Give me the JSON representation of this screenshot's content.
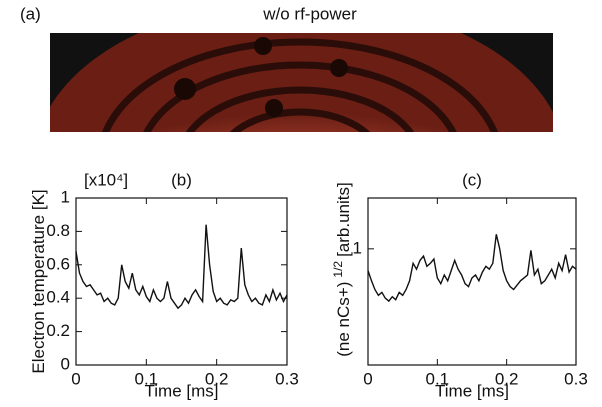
{
  "panel_a": {
    "label": "(a)",
    "title": "w/o rf-power"
  },
  "chart_data": [
    {
      "type": "line",
      "label": "(b)",
      "ylabel": "Electron temperature [K]",
      "y_multiplier": "[x10⁴]",
      "xlabel": "Time [ms]",
      "xlim": [
        0,
        0.3
      ],
      "xticks": [
        0,
        0.1,
        0.2,
        0.3
      ],
      "ylim": [
        0,
        1
      ],
      "yticks": [
        0,
        0.2,
        0.4,
        0.6,
        0.8,
        1
      ],
      "grid": false,
      "color": "#111111",
      "x": [
        0,
        0.005,
        0.01,
        0.015,
        0.02,
        0.025,
        0.03,
        0.035,
        0.04,
        0.045,
        0.05,
        0.055,
        0.06,
        0.065,
        0.07,
        0.075,
        0.08,
        0.085,
        0.09,
        0.095,
        0.1,
        0.105,
        0.11,
        0.115,
        0.12,
        0.125,
        0.13,
        0.135,
        0.14,
        0.145,
        0.15,
        0.155,
        0.16,
        0.165,
        0.17,
        0.175,
        0.18,
        0.185,
        0.19,
        0.195,
        0.2,
        0.205,
        0.21,
        0.215,
        0.22,
        0.225,
        0.23,
        0.235,
        0.24,
        0.245,
        0.25,
        0.255,
        0.26,
        0.265,
        0.27,
        0.275,
        0.28,
        0.285,
        0.29,
        0.295,
        0.3
      ],
      "values": [
        0.68,
        0.55,
        0.5,
        0.47,
        0.48,
        0.45,
        0.42,
        0.43,
        0.38,
        0.4,
        0.37,
        0.36,
        0.4,
        0.6,
        0.5,
        0.46,
        0.55,
        0.45,
        0.42,
        0.47,
        0.41,
        0.38,
        0.45,
        0.4,
        0.38,
        0.4,
        0.5,
        0.4,
        0.37,
        0.34,
        0.36,
        0.4,
        0.37,
        0.42,
        0.45,
        0.41,
        0.38,
        0.84,
        0.6,
        0.44,
        0.38,
        0.4,
        0.37,
        0.36,
        0.39,
        0.38,
        0.4,
        0.7,
        0.48,
        0.42,
        0.38,
        0.4,
        0.37,
        0.36,
        0.42,
        0.38,
        0.45,
        0.39,
        0.43,
        0.38,
        0.42
      ]
    },
    {
      "type": "line",
      "label": "(c)",
      "ylabel": "(ne nCs+)",
      "ylabel_sup": "1/2",
      "ylabel_unit": "[arb.units]",
      "xlabel": "Time [ms]",
      "xlim": [
        0,
        0.3
      ],
      "xticks": [
        0,
        0.1,
        0.2,
        0.3
      ],
      "ylim": [
        0.2,
        1.35
      ],
      "yticks": [
        1
      ],
      "grid": false,
      "color": "#111111",
      "x": [
        0,
        0.005,
        0.01,
        0.015,
        0.02,
        0.025,
        0.03,
        0.035,
        0.04,
        0.045,
        0.05,
        0.055,
        0.06,
        0.065,
        0.07,
        0.075,
        0.08,
        0.085,
        0.09,
        0.095,
        0.1,
        0.105,
        0.11,
        0.115,
        0.12,
        0.125,
        0.13,
        0.135,
        0.14,
        0.145,
        0.15,
        0.155,
        0.16,
        0.165,
        0.17,
        0.175,
        0.18,
        0.185,
        0.19,
        0.195,
        0.2,
        0.205,
        0.21,
        0.215,
        0.22,
        0.225,
        0.23,
        0.235,
        0.24,
        0.245,
        0.25,
        0.255,
        0.26,
        0.265,
        0.27,
        0.275,
        0.28,
        0.285,
        0.29,
        0.295,
        0.3
      ],
      "values": [
        0.85,
        0.78,
        0.72,
        0.68,
        0.7,
        0.66,
        0.64,
        0.67,
        0.65,
        0.7,
        0.68,
        0.72,
        0.78,
        0.9,
        0.86,
        0.92,
        0.95,
        0.88,
        0.9,
        0.93,
        0.8,
        0.76,
        0.82,
        0.78,
        0.85,
        0.92,
        0.86,
        0.82,
        0.76,
        0.74,
        0.8,
        0.82,
        0.78,
        0.84,
        0.88,
        0.86,
        0.9,
        1.1,
        1.0,
        0.85,
        0.78,
        0.74,
        0.72,
        0.75,
        0.78,
        0.8,
        0.82,
        0.99,
        0.82,
        0.86,
        0.76,
        0.78,
        0.82,
        0.86,
        0.8,
        0.9,
        0.85,
        0.96,
        0.84,
        0.88,
        0.86
      ]
    }
  ]
}
